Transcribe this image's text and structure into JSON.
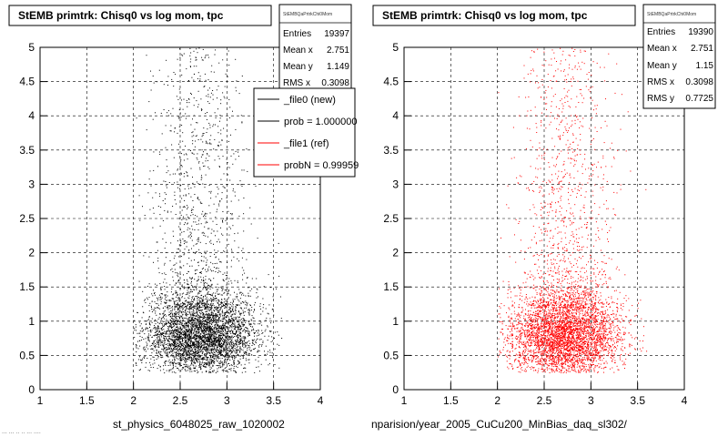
{
  "chart_data": [
    {
      "type": "scatter",
      "title": "StEMB primtrk: Chisq0 vs log mom, tpc",
      "xlabel": "st_physics_6048025_raw_1020002",
      "ylabel": "",
      "xlim": [
        1,
        4
      ],
      "ylim": [
        0,
        5
      ],
      "xticks": [
        "1",
        "1.5",
        "2",
        "2.5",
        "3",
        "3.5",
        "4"
      ],
      "yticks": [
        "0",
        "0.5",
        "1",
        "1.5",
        "2",
        "2.5",
        "3",
        "3.5",
        "4",
        "4.5",
        "5"
      ],
      "grid": true,
      "marker_color": "#000000",
      "stats": {
        "header": "StEMBQaPrtrkChi0Mom",
        "rows": [
          {
            "label": "Entries",
            "value": "19397"
          },
          {
            "label": "Mean x",
            "value": "2.751"
          },
          {
            "label": "Mean y",
            "value": "1.149"
          },
          {
            "label": "RMS x",
            "value": "0.3098"
          }
        ]
      },
      "legend": {
        "placement": "top-right",
        "entries": [
          {
            "label": "_file0 (new)",
            "color": "#000000"
          },
          {
            "label": "prob = 1.000000",
            "color": "#000000"
          },
          {
            "label": "_file1 (ref)",
            "color": "#ff0000"
          },
          {
            "label": "probN = 0.99959",
            "color": "#ff0000"
          }
        ]
      },
      "density": {
        "core": {
          "x": 2.72,
          "y": 0.78,
          "sx": 0.3,
          "sy": 0.3
        },
        "xrange": [
          2.0,
          3.6
        ],
        "tail_to": 5.0
      }
    },
    {
      "type": "scatter",
      "title": "StEMB primtrk: Chisq0 vs log mom, tpc",
      "xlabel": "nparision/year_2005_CuCu200_MinBias_daq_sl302/",
      "ylabel": "",
      "xlim": [
        1,
        4
      ],
      "ylim": [
        0,
        5
      ],
      "xticks": [
        "1",
        "1.5",
        "2",
        "2.5",
        "3",
        "3.5",
        "4"
      ],
      "yticks": [
        "0",
        "0.5",
        "1",
        "1.5",
        "2",
        "2.5",
        "3",
        "3.5",
        "4",
        "4.5",
        "5"
      ],
      "grid": true,
      "marker_color": "#ff0000",
      "stats": {
        "header": "StEMBQaPrtrkChi0Mom",
        "rows": [
          {
            "label": "Entries",
            "value": "19390"
          },
          {
            "label": "Mean x",
            "value": "2.751"
          },
          {
            "label": "Mean y",
            "value": "1.15"
          },
          {
            "label": "RMS x",
            "value": "0.3098"
          },
          {
            "label": "RMS y",
            "value": "0.7725"
          }
        ]
      },
      "density": {
        "core": {
          "x": 2.72,
          "y": 0.8,
          "sx": 0.3,
          "sy": 0.32
        },
        "xrange": [
          2.0,
          3.6
        ],
        "tail_to": 5.0
      }
    }
  ],
  "footer": {
    "corner_note": "... ... .. .. ... ...."
  }
}
